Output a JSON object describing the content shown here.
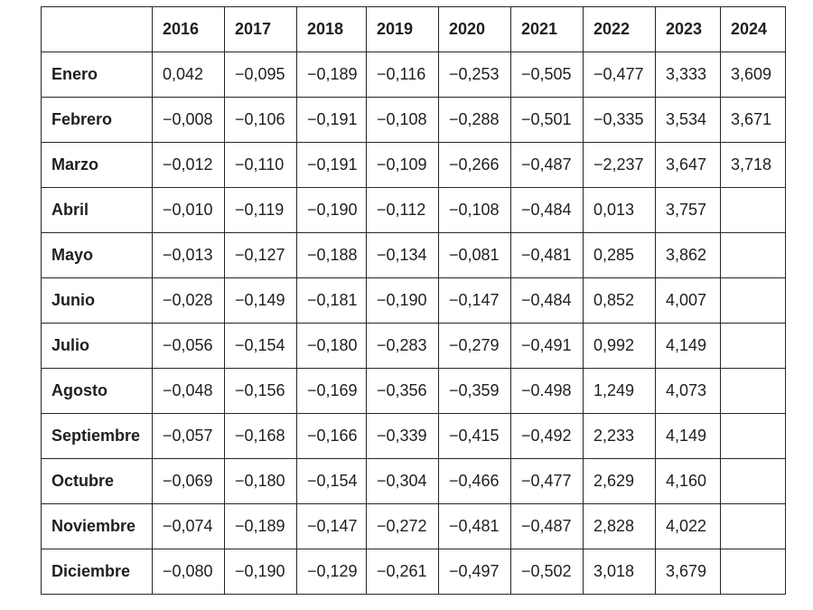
{
  "table": {
    "corner": "",
    "years": [
      "2016",
      "2017",
      "2018",
      "2019",
      "2020",
      "2021",
      "2022",
      "2023",
      "2024"
    ],
    "rows": [
      {
        "month": "Enero",
        "values": [
          "0,042",
          "−0,095",
          "−0,189",
          "−0,116",
          "−0,253",
          "−0,505",
          "−0,477",
          "3,333",
          "3,609"
        ]
      },
      {
        "month": "Febrero",
        "values": [
          "−0,008",
          "−0,106",
          "−0,191",
          "−0,108",
          "−0,288",
          "−0,501",
          "−0,335",
          "3,534",
          "3,671"
        ]
      },
      {
        "month": "Marzo",
        "values": [
          "−0,012",
          "−0,110",
          "−0,191",
          "−0,109",
          "−0,266",
          "−0,487",
          "−2,237",
          "3,647",
          "3,718"
        ]
      },
      {
        "month": "Abril",
        "values": [
          "−0,010",
          "−0,119",
          "−0,190",
          "−0,112",
          "−0,108",
          "−0,484",
          "0,013",
          "3,757",
          ""
        ]
      },
      {
        "month": "Mayo",
        "values": [
          "−0,013",
          "−0,127",
          "−0,188",
          "−0,134",
          "−0,081",
          "−0,481",
          "0,285",
          "3,862",
          ""
        ]
      },
      {
        "month": "Junio",
        "values": [
          "−0,028",
          "−0,149",
          "−0,181",
          "−0,190",
          "−0,147",
          "−0,484",
          "0,852",
          "4,007",
          ""
        ]
      },
      {
        "month": "Julio",
        "values": [
          "−0,056",
          "−0,154",
          "−0,180",
          "−0,283",
          "−0,279",
          "−0,491",
          "0,992",
          "4,149",
          ""
        ]
      },
      {
        "month": "Agosto",
        "values": [
          "−0,048",
          "−0,156",
          "−0,169",
          "−0,356",
          "−0,359",
          "−0.498",
          "1,249",
          "4,073",
          ""
        ]
      },
      {
        "month": "Septiembre",
        "values": [
          "−0,057",
          "−0,168",
          "−0,166",
          "−0,339",
          "−0,415",
          "−0,492",
          "2,233",
          "4,149",
          ""
        ]
      },
      {
        "month": "Octubre",
        "values": [
          "−0,069",
          "−0,180",
          "−0,154",
          "−0,304",
          "−0,466",
          "−0,477",
          "2,629",
          "4,160",
          ""
        ]
      },
      {
        "month": "Noviembre",
        "values": [
          "−0,074",
          "−0,189",
          "−0,147",
          "−0,272",
          "−0,481",
          "−0,487",
          "2,828",
          "4,022",
          ""
        ]
      },
      {
        "month": "Diciembre",
        "values": [
          "−0,080",
          "−0,190",
          "−0,129",
          "−0,261",
          "−0,497",
          "−0,502",
          "3,018",
          "3,679",
          ""
        ]
      }
    ]
  }
}
